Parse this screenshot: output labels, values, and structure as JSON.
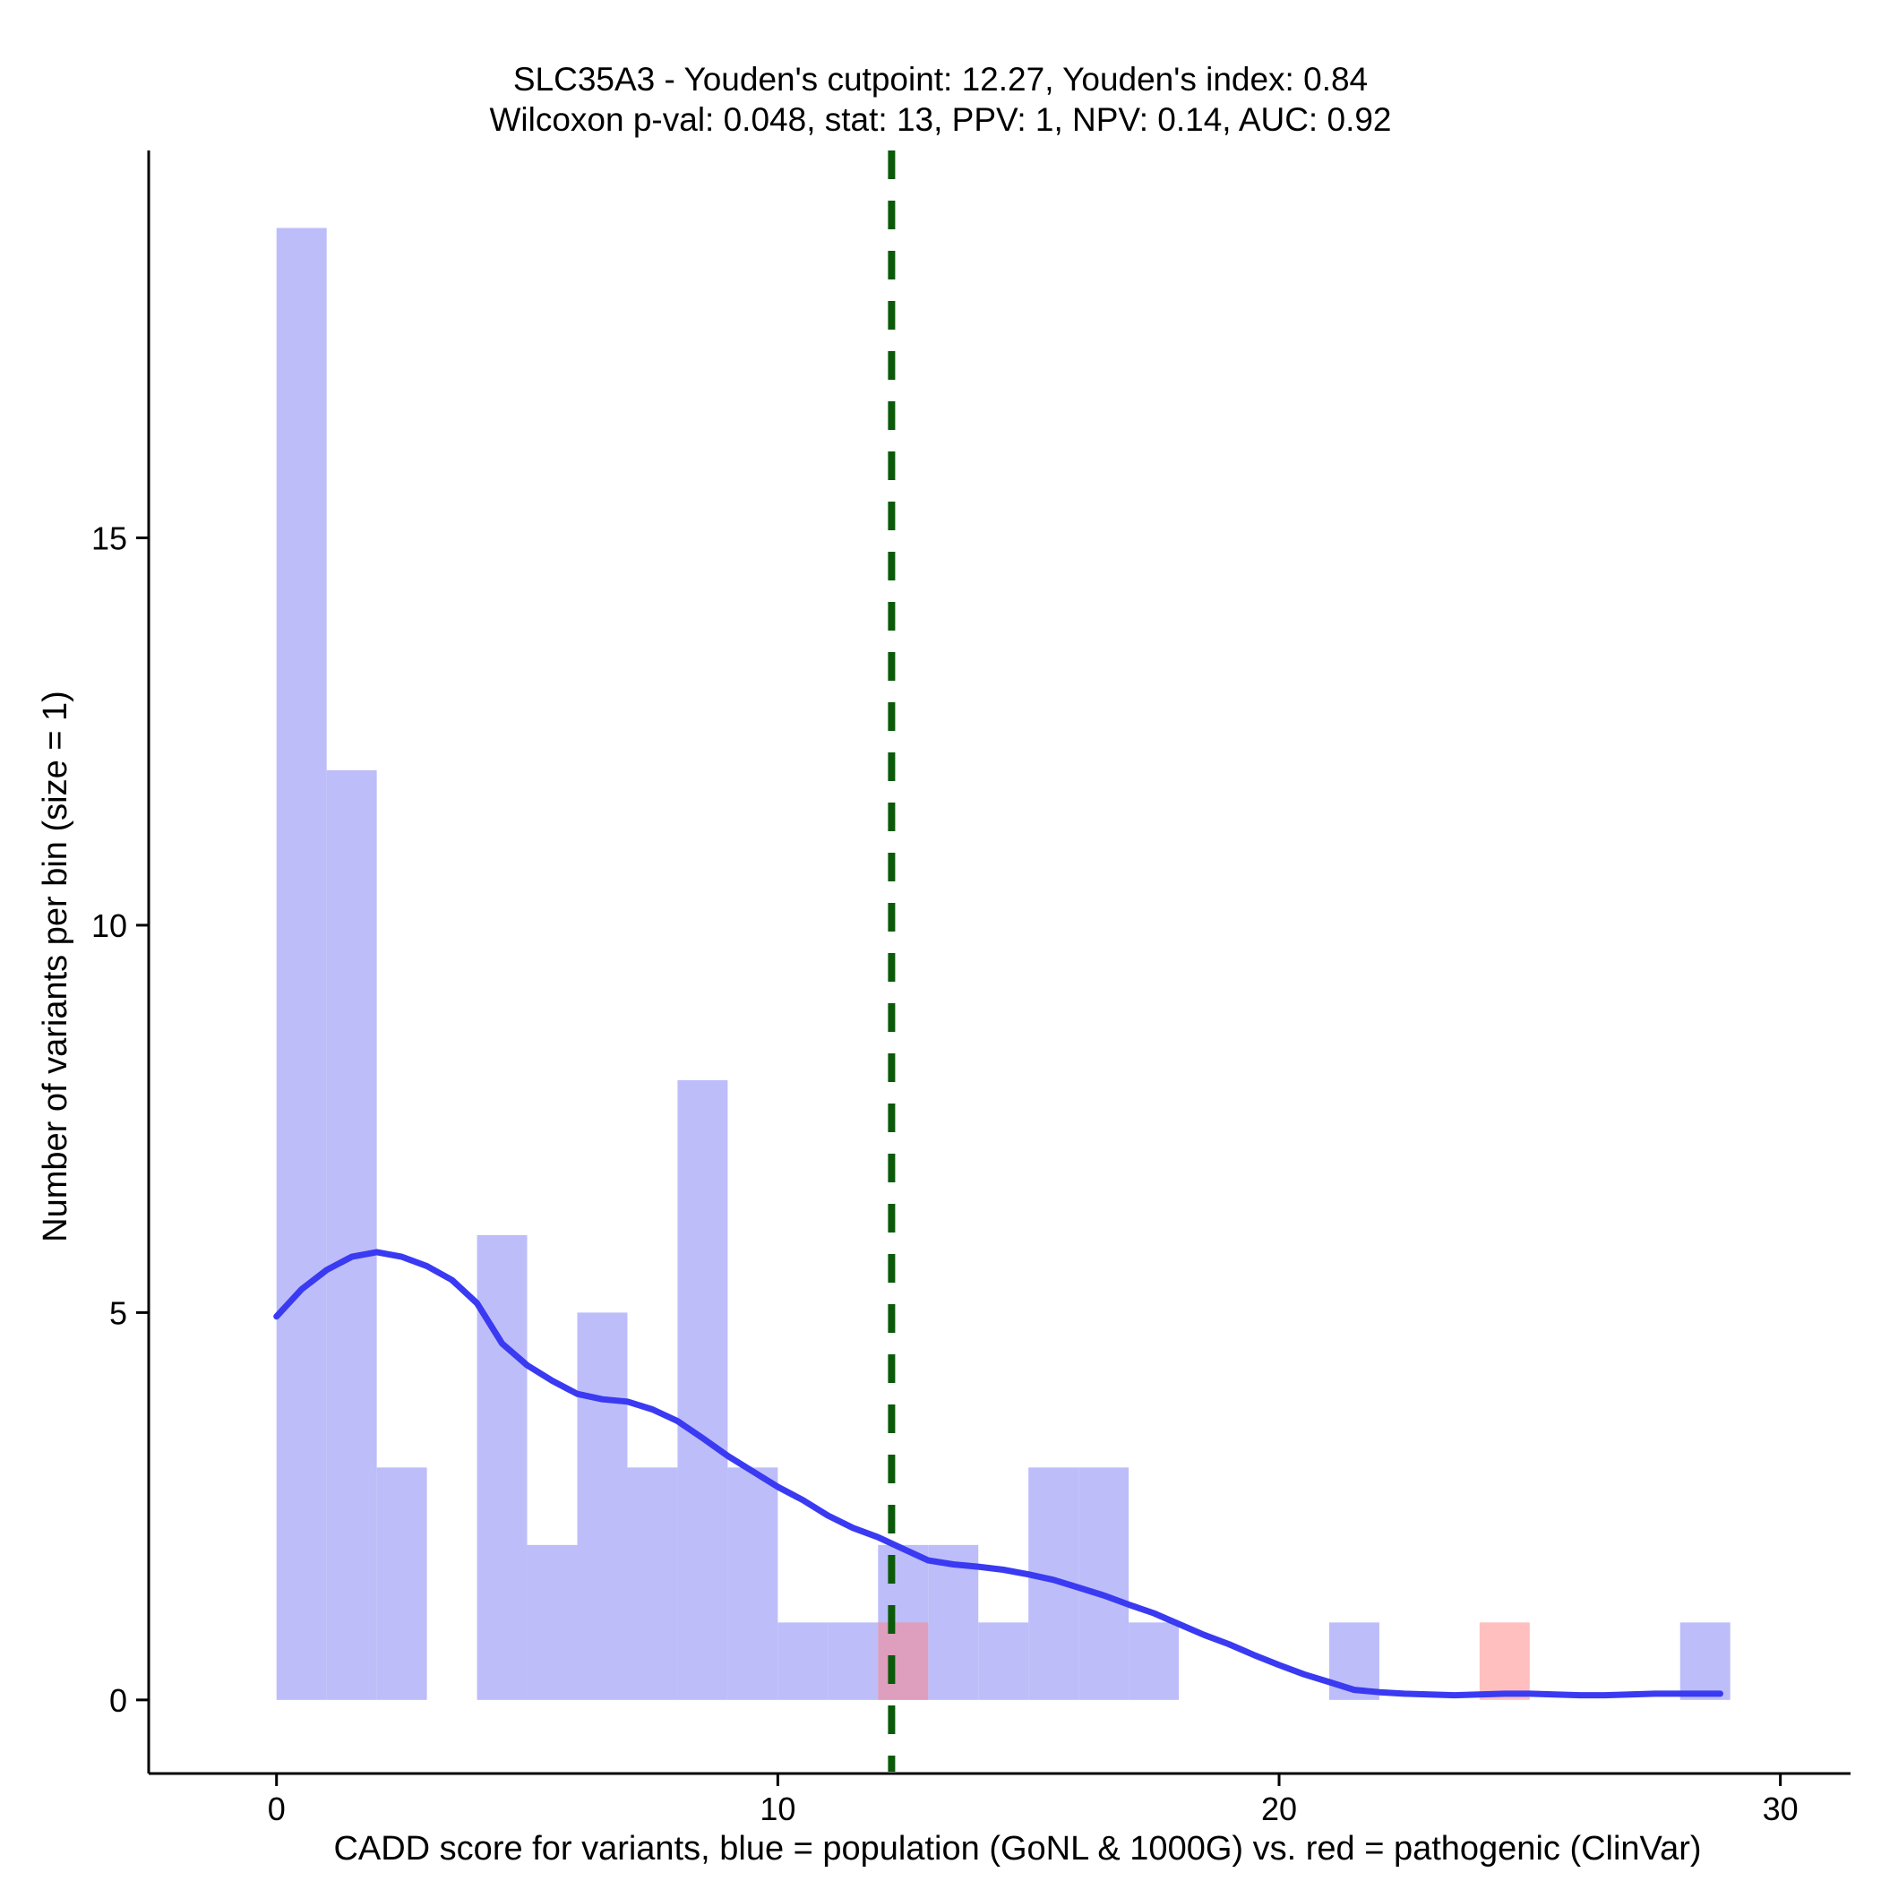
{
  "chart_data": {
    "type": "bar",
    "title": "SLC35A3 - Youden's cutpoint: 12.27, Youden's index: 0.84",
    "subtitle": "Wilcoxon p-val: 0.048, stat: 13, PPV: 1, NPV: 0.14, AUC: 0.92",
    "xlabel": "CADD score for variants, blue = population (GoNL & 1000G) vs. red = pathogenic (ClinVar)",
    "ylabel": "Number of variants per bin (size = 1)",
    "xlim": [
      -2.55,
      31.4
    ],
    "ylim": [
      -0.95,
      20
    ],
    "xticks": [
      0,
      10,
      20,
      30
    ],
    "yticks": [
      0,
      5,
      10,
      15
    ],
    "bin_width": 1,
    "series": [
      {
        "name": "population (GoNL & 1000G)",
        "color": "#bdbdfa",
        "bins": [
          {
            "x0": 0,
            "count": 19
          },
          {
            "x0": 1,
            "count": 12
          },
          {
            "x0": 2,
            "count": 3
          },
          {
            "x0": 4,
            "count": 6
          },
          {
            "x0": 5,
            "count": 2
          },
          {
            "x0": 6,
            "count": 5
          },
          {
            "x0": 7,
            "count": 3
          },
          {
            "x0": 8,
            "count": 8
          },
          {
            "x0": 9,
            "count": 3
          },
          {
            "x0": 10,
            "count": 1
          },
          {
            "x0": 11,
            "count": 1
          },
          {
            "x0": 12,
            "count": 2
          },
          {
            "x0": 13,
            "count": 2
          },
          {
            "x0": 14,
            "count": 1
          },
          {
            "x0": 15,
            "count": 3
          },
          {
            "x0": 16,
            "count": 3
          },
          {
            "x0": 17,
            "count": 1
          },
          {
            "x0": 21,
            "count": 1
          },
          {
            "x0": 28,
            "count": 1
          }
        ]
      },
      {
        "name": "pathogenic (ClinVar)",
        "color": "#ff8080",
        "opacity": 0.5,
        "bins": [
          {
            "x0": 12,
            "count": 1
          },
          {
            "x0": 24,
            "count": 1
          }
        ]
      }
    ],
    "density_curve": {
      "color": "#3a3af2",
      "points": [
        [
          0,
          4.95
        ],
        [
          0.5,
          5.3
        ],
        [
          1,
          5.55
        ],
        [
          1.5,
          5.72
        ],
        [
          2,
          5.78
        ],
        [
          2.5,
          5.72
        ],
        [
          3,
          5.6
        ],
        [
          3.5,
          5.42
        ],
        [
          4,
          5.12
        ],
        [
          4.5,
          4.6
        ],
        [
          5,
          4.32
        ],
        [
          5.5,
          4.12
        ],
        [
          6,
          3.95
        ],
        [
          6.5,
          3.88
        ],
        [
          7,
          3.85
        ],
        [
          7.5,
          3.75
        ],
        [
          8,
          3.6
        ],
        [
          8.5,
          3.38
        ],
        [
          9,
          3.15
        ],
        [
          9.5,
          2.95
        ],
        [
          10,
          2.75
        ],
        [
          10.5,
          2.58
        ],
        [
          11,
          2.38
        ],
        [
          11.5,
          2.22
        ],
        [
          12,
          2.1
        ],
        [
          12.5,
          1.95
        ],
        [
          13,
          1.8
        ],
        [
          13.5,
          1.75
        ],
        [
          14,
          1.72
        ],
        [
          14.5,
          1.68
        ],
        [
          15,
          1.62
        ],
        [
          15.5,
          1.55
        ],
        [
          16,
          1.45
        ],
        [
          16.5,
          1.35
        ],
        [
          17,
          1.23
        ],
        [
          17.5,
          1.12
        ],
        [
          18,
          0.98
        ],
        [
          18.5,
          0.84
        ],
        [
          19,
          0.72
        ],
        [
          19.5,
          0.58
        ],
        [
          20,
          0.45
        ],
        [
          20.5,
          0.33
        ],
        [
          21,
          0.23
        ],
        [
          21.5,
          0.13
        ],
        [
          22,
          0.1
        ],
        [
          22.5,
          0.08
        ],
        [
          23,
          0.07
        ],
        [
          23.5,
          0.06
        ],
        [
          24,
          0.07
        ],
        [
          24.5,
          0.08
        ],
        [
          25,
          0.08
        ],
        [
          25.5,
          0.07
        ],
        [
          26,
          0.06
        ],
        [
          26.5,
          0.06
        ],
        [
          27,
          0.07
        ],
        [
          27.5,
          0.08
        ],
        [
          28,
          0.08
        ],
        [
          28.5,
          0.08
        ],
        [
          28.8,
          0.08
        ]
      ]
    },
    "cutpoint": {
      "x": 12.27,
      "color": "#0a5a0a",
      "style": "dashed"
    }
  }
}
